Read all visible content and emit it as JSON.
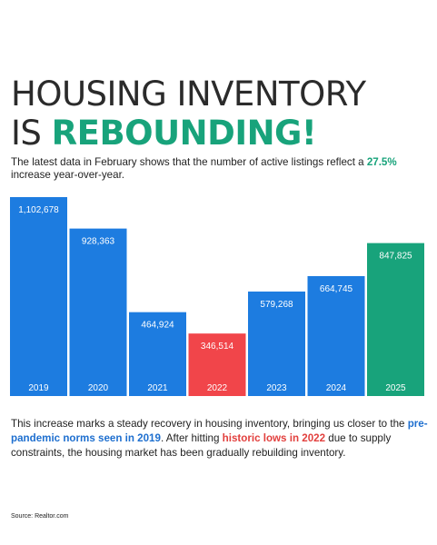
{
  "header": {
    "title_line1": "HOUSING INVENTORY",
    "title_line2_prefix": "IS ",
    "title_line2_accent": "REBOUNDING!"
  },
  "lead": {
    "text": "The latest data in February shows that the number of active listings reflect a ",
    "highlight": "27.5%",
    "text_end": " increase year-over-year."
  },
  "body": {
    "p1": "This increase marks a steady recovery in housing inventory, bringing us closer to the ",
    "blue": "pre-pandemic norms seen in 2019",
    "p2": ". After hitting ",
    "red": "historic lows in 2022",
    "p3": " due to supply constraints, the housing market has been gradually rebuilding inventory."
  },
  "source": "Source: Realtor.com",
  "colors": {
    "blue": "#1e6fcf",
    "bar_blue": "#1d7ce0",
    "red": "#f1454a",
    "green": "#18a37b"
  },
  "chart_data": {
    "type": "bar",
    "categories": [
      "2019",
      "2020",
      "2021",
      "2022",
      "2023",
      "2024",
      "2025"
    ],
    "values": [
      1102678,
      928363,
      464924,
      346514,
      579268,
      664745,
      847825
    ],
    "value_labels": [
      "1,102,678",
      "928,363",
      "464,924",
      "346,514",
      "579,268",
      "664,745",
      "847,825"
    ],
    "bar_colors": [
      "#1d7ce0",
      "#1d7ce0",
      "#1d7ce0",
      "#f1454a",
      "#1d7ce0",
      "#1d7ce0",
      "#18a37b"
    ],
    "ylim": [
      0,
      1102678
    ],
    "grid": false,
    "legend": "none"
  }
}
